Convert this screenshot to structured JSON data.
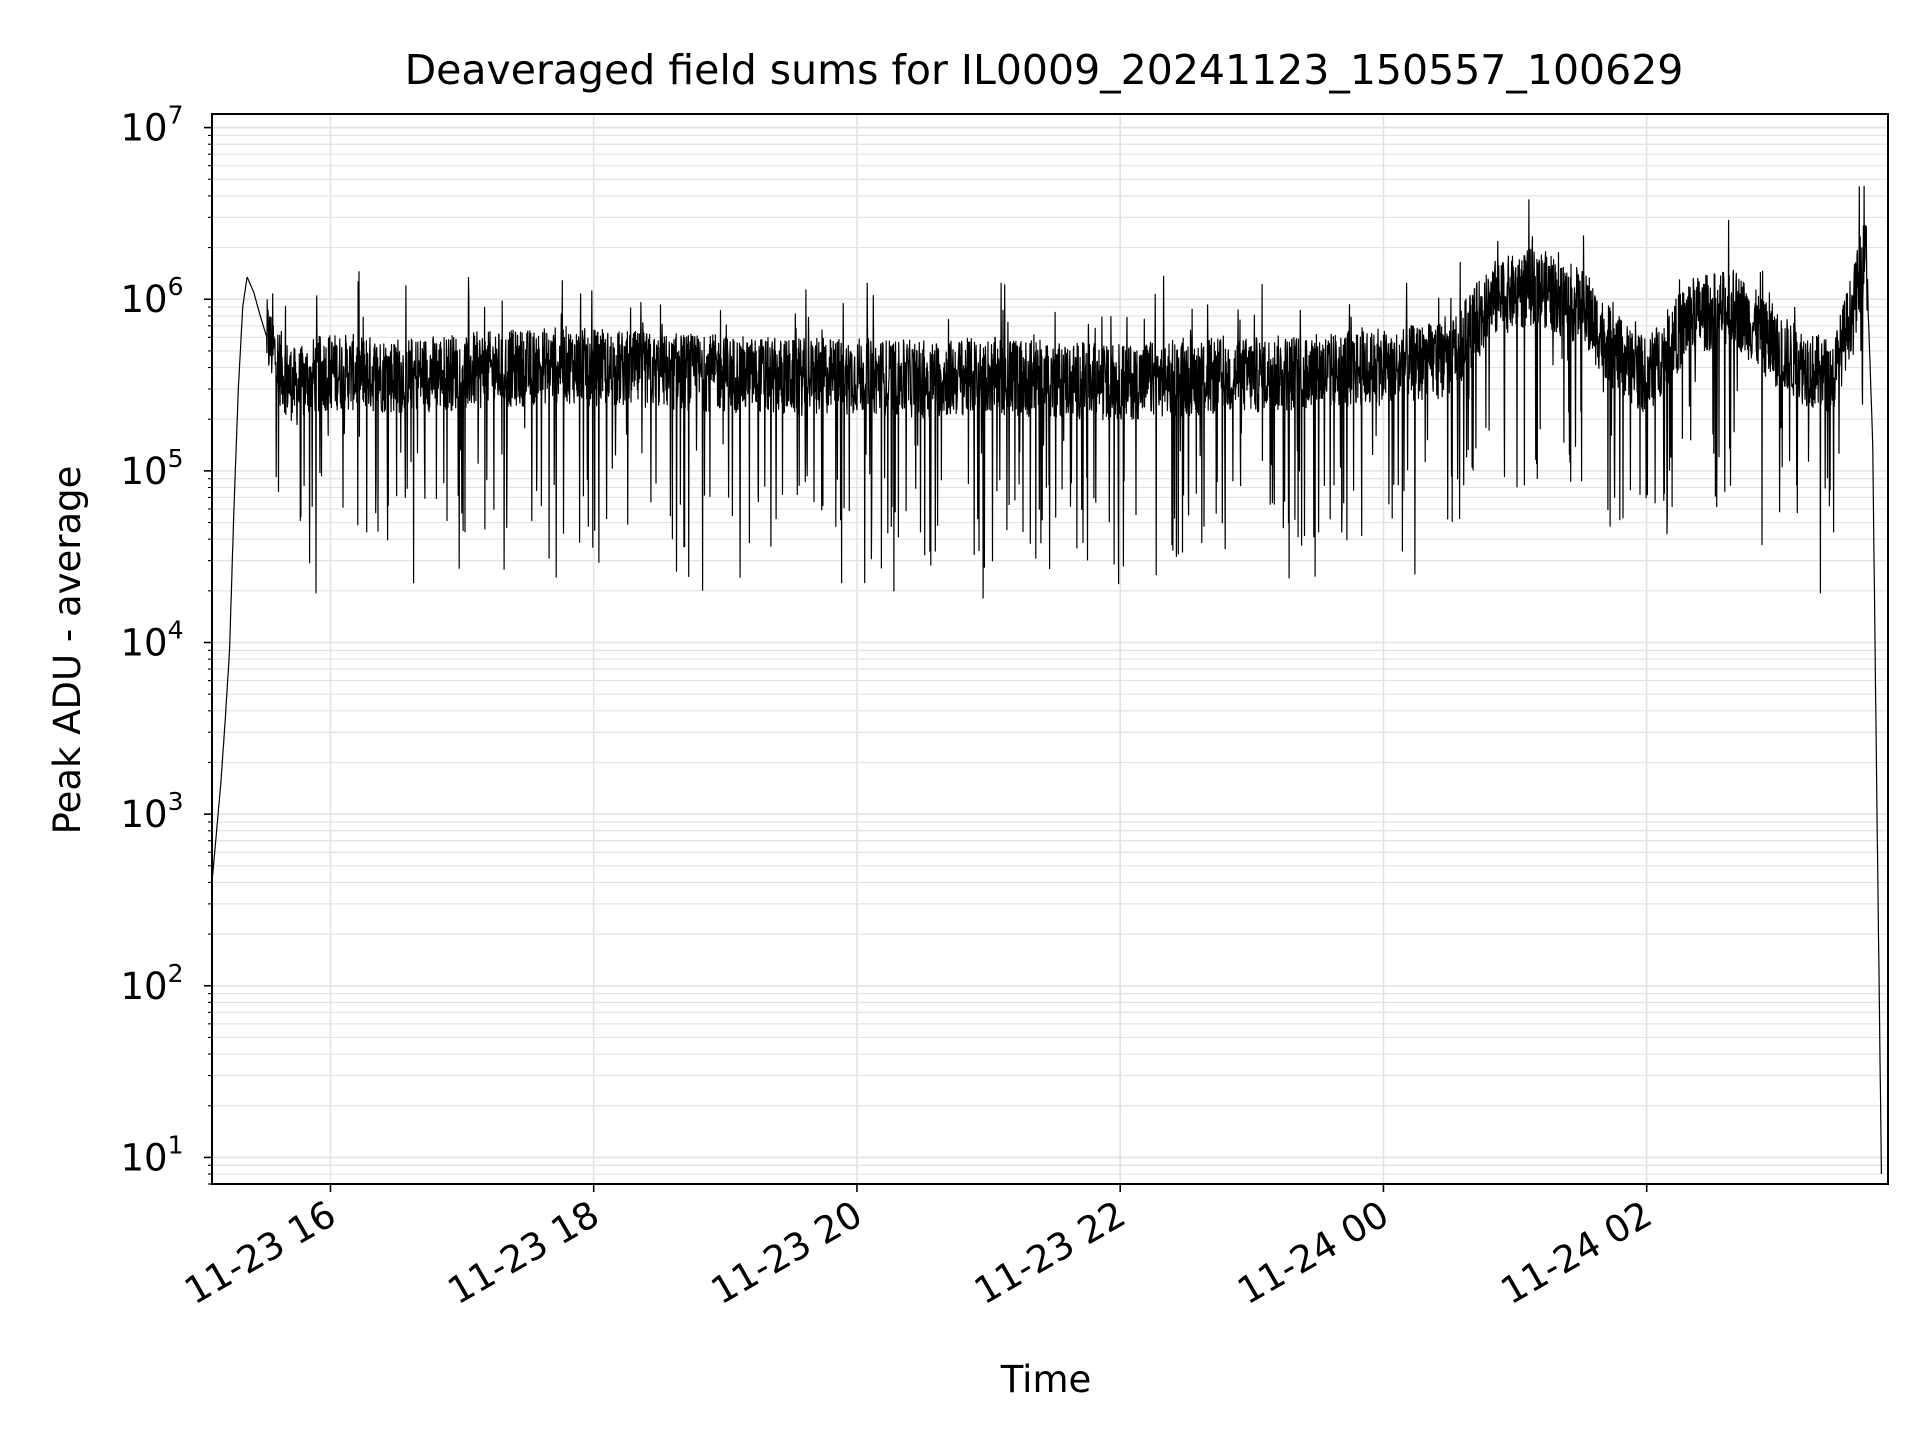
{
  "chart_data": {
    "type": "line",
    "title": "Deaveraged field sums for IL0009_20241123_150557_100629",
    "xlabel": "Time",
    "ylabel": "Peak ADU - average",
    "yscale": "log",
    "grid": true,
    "x_ticks": [
      "11-23 16",
      "11-23 18",
      "11-23 20",
      "11-23 22",
      "11-24 00",
      "11-24 02"
    ],
    "y_ticks": [
      {
        "base": "10",
        "exp": "1"
      },
      {
        "base": "10",
        "exp": "2"
      },
      {
        "base": "10",
        "exp": "3"
      },
      {
        "base": "10",
        "exp": "4"
      },
      {
        "base": "10",
        "exp": "5"
      },
      {
        "base": "10",
        "exp": "6"
      },
      {
        "base": "10",
        "exp": "7"
      }
    ],
    "xlim": [
      "2024-11-23 15:06",
      "2024-11-24 03:50"
    ],
    "ylim": [
      7,
      12000000
    ],
    "line_color": "#000000",
    "grid_color": "#e3e3e3",
    "series": [
      {
        "x": [
          "2024-11-23 15:06",
          "2024-11-23 15:10",
          "2024-11-23 15:12",
          "2024-11-23 15:14",
          "2024-11-23 15:16",
          "2024-11-23 15:18",
          "2024-11-23 15:20",
          "2024-11-23 15:22",
          "2024-11-23 15:25",
          "2024-11-23 15:28",
          "2024-11-23 15:31",
          "2024-11-23 15:34",
          "2024-11-23 15:37",
          "2024-11-23 15:40",
          "2024-11-23 15:45",
          "2024-11-23 15:50",
          "2024-11-23 16:00",
          "2024-11-23 16:30",
          "2024-11-23 17:00",
          "2024-11-23 17:30",
          "2024-11-23 17:45",
          "2024-11-23 18:00",
          "2024-11-23 18:30",
          "2024-11-23 19:00",
          "2024-11-23 19:30",
          "2024-11-23 20:00",
          "2024-11-23 20:30",
          "2024-11-23 21:00",
          "2024-11-23 21:30",
          "2024-11-23 22:00",
          "2024-11-23 22:30",
          "2024-11-23 23:00",
          "2024-11-23 23:30",
          "2024-11-24 00:00",
          "2024-11-24 00:30",
          "2024-11-24 00:50",
          "2024-11-24 01:10",
          "2024-11-24 01:30",
          "2024-11-24 01:45",
          "2024-11-24 02:00",
          "2024-11-24 02:20",
          "2024-11-24 02:40",
          "2024-11-24 03:00",
          "2024-11-24 03:15",
          "2024-11-24 03:25",
          "2024-11-24 03:35",
          "2024-11-24 03:40",
          "2024-11-24 03:43",
          "2024-11-24 03:45",
          "2024-11-24 03:47"
        ],
        "y": [
          400,
          1500,
          3500,
          9000,
          60000,
          300000,
          900000,
          1350000,
          1100000,
          800000,
          600000,
          500000,
          400000,
          350000,
          300000,
          350000,
          380000,
          360000,
          380000,
          400000,
          420000,
          400000,
          380000,
          370000,
          350000,
          360000,
          340000,
          360000,
          340000,
          330000,
          350000,
          360000,
          380000,
          400000,
          450000,
          1000000,
          1200000,
          900000,
          500000,
          350000,
          800000,
          900000,
          500000,
          380000,
          350000,
          1000000,
          2000000,
          150000,
          1000,
          8
        ]
      }
    ]
  }
}
